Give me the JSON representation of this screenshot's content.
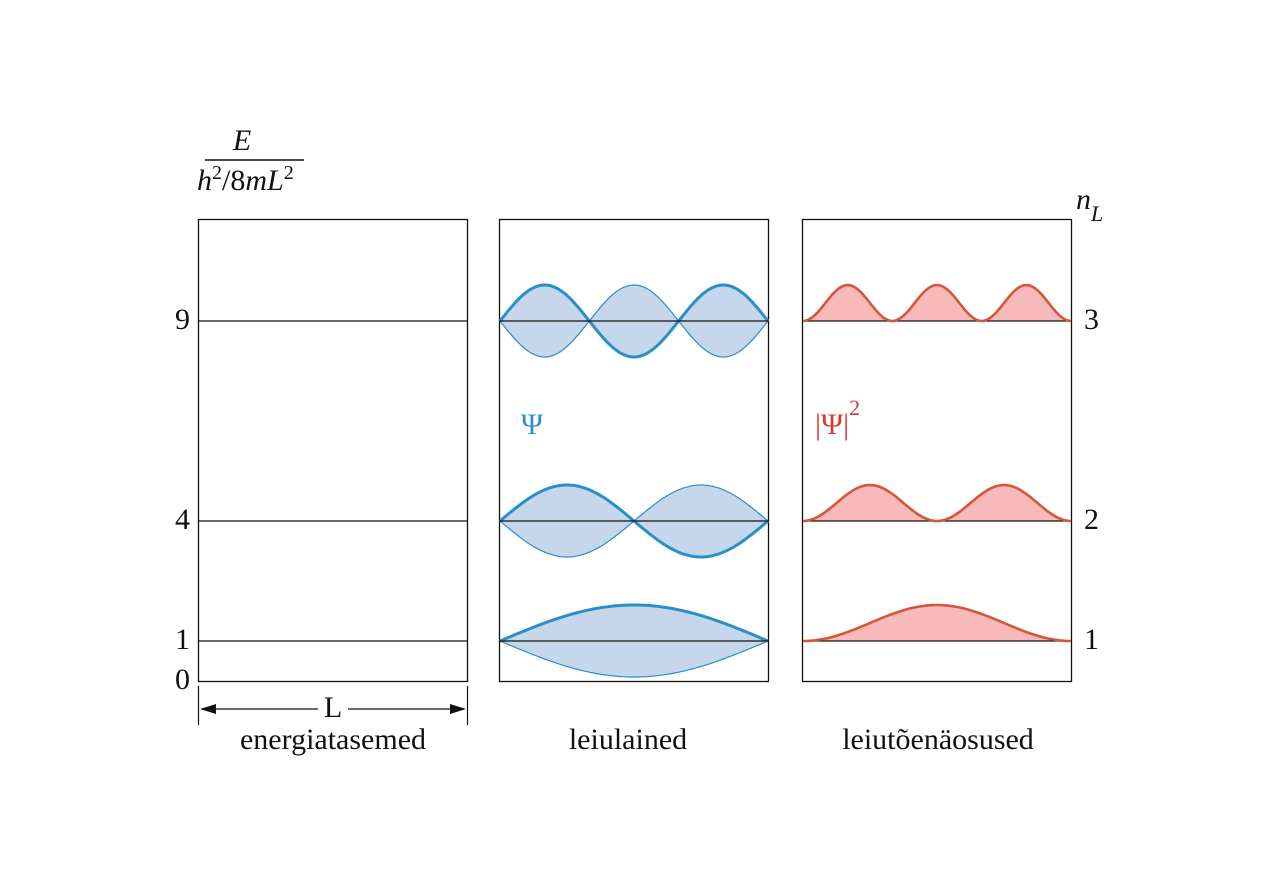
{
  "axis_label": {
    "numerator": "E",
    "denominator": {
      "h": "h",
      "h_exp": "2",
      "mid": "/8",
      "m": "m",
      "L": "L",
      "L_exp": "2"
    }
  },
  "n_label": {
    "n": "n",
    "sub": "L"
  },
  "zero_label": 0,
  "levels": [
    {
      "energy": 1,
      "n": 1
    },
    {
      "energy": 4,
      "n": 2
    },
    {
      "energy": 9,
      "n": 3
    }
  ],
  "width_label": "L",
  "psi_label": "Ψ",
  "prob_label": {
    "text": "|Ψ|",
    "exp": "2"
  },
  "captions": [
    "energiatasemed",
    "leiulained",
    "leiutõenäosused"
  ]
}
